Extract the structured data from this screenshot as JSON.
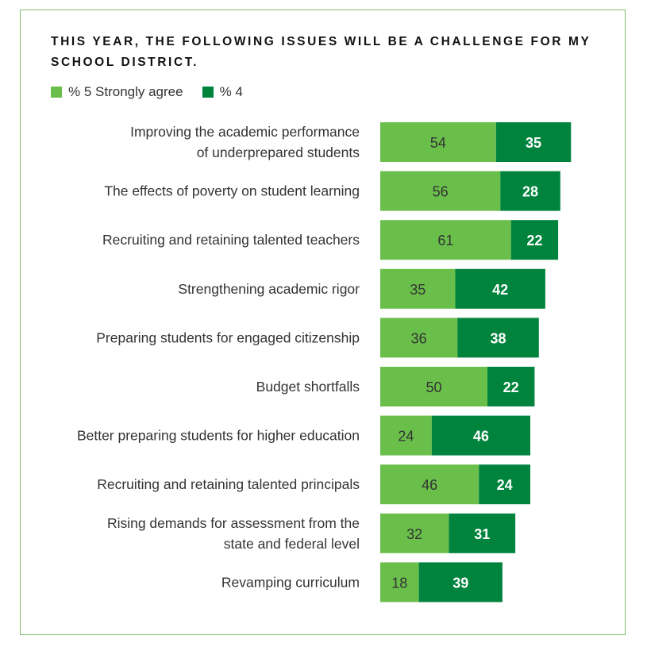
{
  "title": "THIS YEAR, THE FOLLOWING ISSUES WILL BE A CHALLENGE FOR MY SCHOOL DISTRICT.",
  "colors": {
    "strongly_agree": "#6abf4b",
    "agree_4": "#00843d",
    "frame": "#7fbf6b"
  },
  "chart_data": {
    "type": "bar",
    "orientation": "horizontal",
    "stacked": true,
    "title": "THIS YEAR, THE FOLLOWING ISSUES WILL BE A CHALLENGE FOR MY SCHOOL DISTRICT.",
    "legend": "top-left",
    "grid": false,
    "categories": [
      [
        "Improving the academic performance",
        "of underprepared students"
      ],
      [
        "The effects of poverty on student learning"
      ],
      [
        "Recruiting and retaining talented teachers"
      ],
      [
        "Strengthening academic rigor"
      ],
      [
        "Preparing students for engaged citizenship"
      ],
      [
        "Budget shortfalls"
      ],
      [
        "Better preparing students for higher education"
      ],
      [
        "Recruiting and retaining talented principals"
      ],
      [
        "Rising demands for assessment from the",
        "state and federal level"
      ],
      [
        "Revamping curriculum"
      ]
    ],
    "series": [
      {
        "name": "% 5 Strongly agree",
        "values": [
          54,
          56,
          61,
          35,
          36,
          50,
          24,
          46,
          32,
          18
        ]
      },
      {
        "name": "% 4",
        "values": [
          35,
          28,
          22,
          42,
          38,
          22,
          46,
          24,
          31,
          39
        ]
      }
    ]
  }
}
